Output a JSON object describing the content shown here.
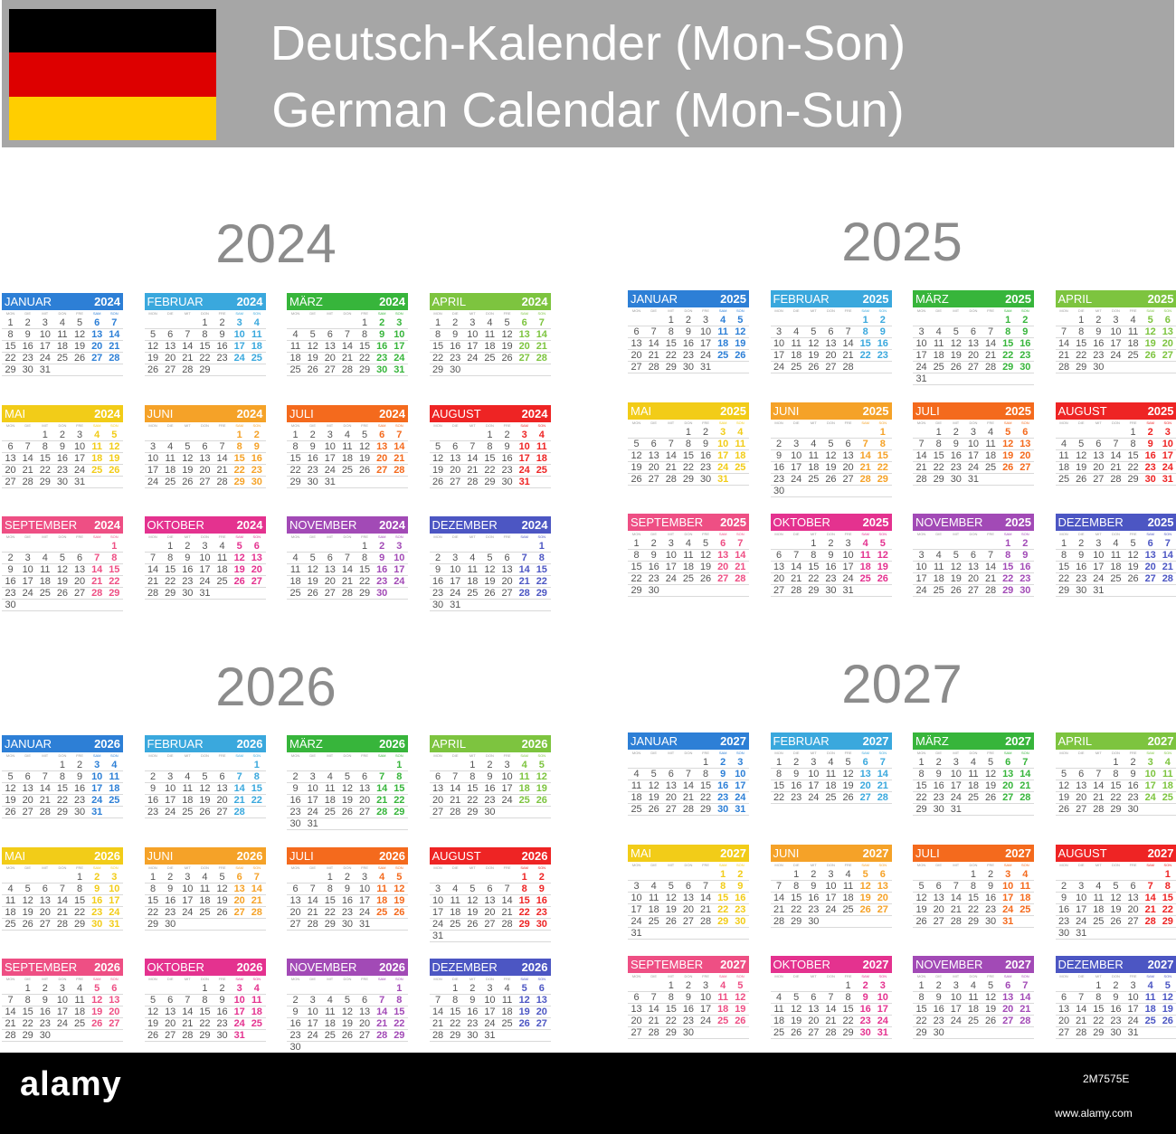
{
  "header": {
    "title_de": "Deutsch-Kalender (Mon-Son)",
    "title_en": "German Calendar (Mon-Sun)",
    "background": "#a6a6a6",
    "flag_colors": [
      "#000000",
      "#dd0000",
      "#ffce00"
    ]
  },
  "weekday_labels": [
    "MON",
    "DIE",
    "MIT",
    "DON",
    "FRE",
    "SAM",
    "SON"
  ],
  "month_names": [
    "JANUAR",
    "FEBRUAR",
    "MÄRZ",
    "APRIL",
    "MAI",
    "JUNI",
    "JULI",
    "AUGUST",
    "SEPTEMBER",
    "OKTOBER",
    "NOVEMBER",
    "DEZEMBER"
  ],
  "month_colors": [
    "#2d7fd6",
    "#3aa8dd",
    "#37b53b",
    "#7dc43f",
    "#f2cc18",
    "#f5a228",
    "#f46a1d",
    "#ee2424",
    "#ee4f84",
    "#e4328f",
    "#a24ab6",
    "#4c56c3"
  ],
  "years": [
    "2024",
    "2025",
    "2026",
    "2027"
  ],
  "footer": {
    "logo": "alamy",
    "image_id": "2M7575E",
    "url": "www.alamy.com"
  }
}
